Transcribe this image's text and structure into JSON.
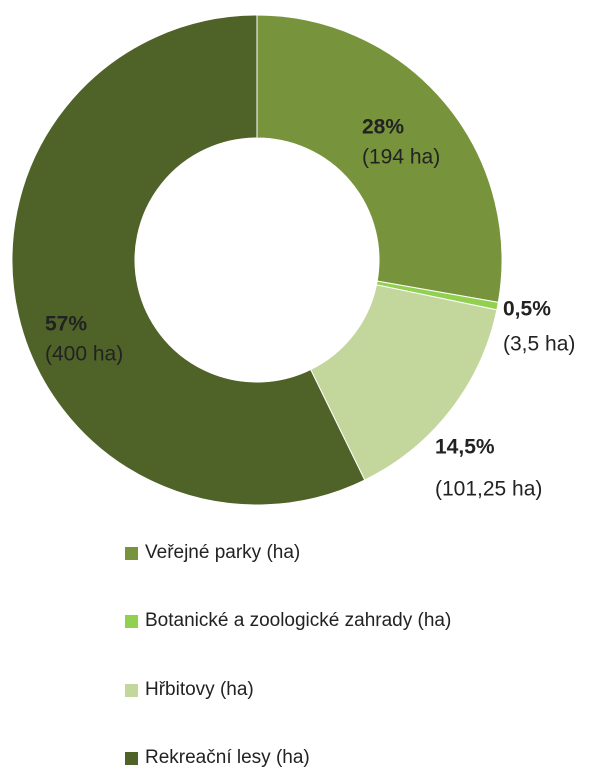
{
  "chart_data": {
    "type": "donut",
    "categories": [
      "Veřejné parky (ha)",
      "Botanické a zoologické zahrady (ha)",
      "Hřbitovy (ha)",
      "Rekreační lesy (ha)"
    ],
    "values": [
      194,
      3.5,
      101.25,
      400
    ],
    "value_labels": [
      "(194 ha)",
      "(3,5 ha)",
      "(101,25 ha)",
      "(400 ha)"
    ],
    "percent_labels": [
      "28%",
      "0,5%",
      "14,5%",
      "57%"
    ],
    "colors": [
      "#77933c",
      "#92d050",
      "#c3d69b",
      "#4f6228"
    ],
    "legend": "bottom"
  }
}
